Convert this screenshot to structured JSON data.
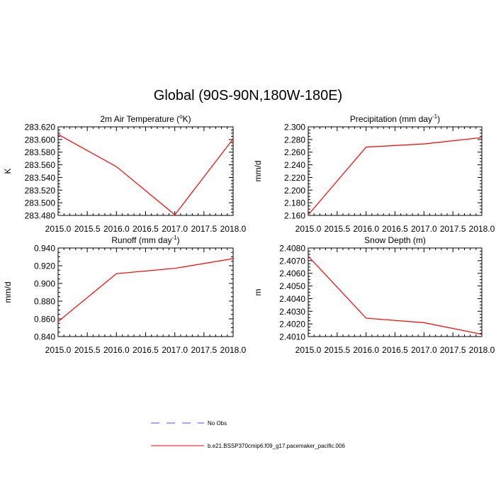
{
  "title": "Global (90S-90N,180W-180E)",
  "legend": [
    {
      "label": "No Obs",
      "color": "#4a4aff",
      "dash": true
    },
    {
      "label": "b.e21.BSSP370cmip6.f09_g17.pacemaker_pacific.006",
      "color": "#ff0000",
      "dash": false
    }
  ],
  "chart_data": [
    {
      "type": "line",
      "title": "2m Air Temperature (",
      "title_parts": {
        "pre": "2m Air Temperature (",
        "sup": "o",
        "post": "K)"
      },
      "ylabel": "K",
      "xlabel": "",
      "xlim": [
        2015.0,
        2018.0
      ],
      "ylim": [
        283.48,
        283.62
      ],
      "xticks": [
        "2015.0",
        "2015.5",
        "2016.0",
        "2016.5",
        "2017.0",
        "2017.5",
        "2018.0"
      ],
      "yticks": [
        "283.480",
        "283.500",
        "283.520",
        "283.540",
        "283.560",
        "283.580",
        "283.600",
        "283.620"
      ],
      "series": [
        {
          "x": [
            2015.0,
            2016.0,
            2017.0,
            2018.0
          ],
          "values": [
            283.608,
            283.557,
            283.481,
            283.601
          ],
          "color": "#ff0000"
        }
      ]
    },
    {
      "type": "line",
      "title": "Precipitation (mm day",
      "title_parts": {
        "pre": "Precipitation (mm day",
        "sup": "-1",
        "post": ")"
      },
      "ylabel": "mm/d",
      "xlabel": "",
      "xlim": [
        2015.0,
        2018.0
      ],
      "ylim": [
        2.16,
        2.3
      ],
      "xticks": [
        "2015.0",
        "2015.5",
        "2016.0",
        "2016.5",
        "2017.0",
        "2017.5",
        "2018.0"
      ],
      "yticks": [
        "2.160",
        "2.180",
        "2.200",
        "2.220",
        "2.240",
        "2.260",
        "2.280",
        "2.300"
      ],
      "series": [
        {
          "x": [
            2015.0,
            2016.0,
            2017.0,
            2018.0
          ],
          "values": [
            2.161,
            2.268,
            2.273,
            2.283
          ],
          "color": "#ff0000"
        }
      ]
    },
    {
      "type": "line",
      "title": "Runoff (mm day",
      "title_parts": {
        "pre": "Runoff (mm day",
        "sup": "-1",
        "post": ")"
      },
      "ylabel": "mm/d",
      "xlabel": "",
      "xlim": [
        2015.0,
        2018.0
      ],
      "ylim": [
        0.84,
        0.94
      ],
      "xticks": [
        "2015.0",
        "2015.5",
        "2016.0",
        "2016.5",
        "2017.0",
        "2017.5",
        "2018.0"
      ],
      "yticks": [
        "0.840",
        "0.860",
        "0.880",
        "0.900",
        "0.920",
        "0.940"
      ],
      "series": [
        {
          "x": [
            2015.0,
            2016.0,
            2017.0,
            2018.0
          ],
          "values": [
            0.857,
            0.911,
            0.917,
            0.928
          ],
          "color": "#ff0000"
        }
      ]
    },
    {
      "type": "line",
      "title": "Snow Depth (m)",
      "title_parts": {
        "pre": "Snow Depth (m)",
        "sup": "",
        "post": ""
      },
      "ylabel": "m",
      "xlabel": "",
      "xlim": [
        2015.0,
        2018.0
      ],
      "ylim": [
        2.401,
        2.408
      ],
      "xticks": [
        "2015.0",
        "2015.5",
        "2016.0",
        "2016.5",
        "2017.0",
        "2017.5",
        "2018.0"
      ],
      "yticks": [
        "2.4010",
        "2.4020",
        "2.4030",
        "2.4040",
        "2.4050",
        "2.4060",
        "2.4070",
        "2.4080"
      ],
      "series": [
        {
          "x": [
            2015.0,
            2016.0,
            2017.0,
            2018.0
          ],
          "values": [
            2.40735,
            2.40245,
            2.4021,
            2.40118
          ],
          "color": "#ff0000"
        }
      ]
    }
  ]
}
